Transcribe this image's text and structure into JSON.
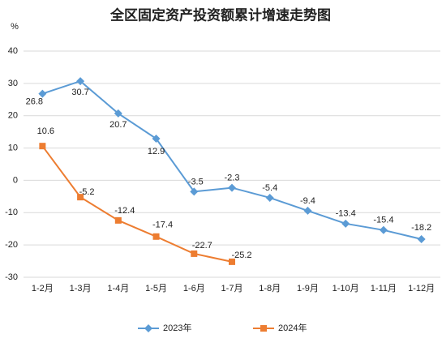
{
  "chart_data": {
    "type": "line",
    "title": "全区固定资产投资额累计增速走势图",
    "y_label": "%",
    "categories": [
      "1-2月",
      "1-3月",
      "1-4月",
      "1-5月",
      "1-6月",
      "1-7月",
      "1-8月",
      "1-9月",
      "1-10月",
      "1-11月",
      "1-12月"
    ],
    "series": [
      {
        "name": "2023年",
        "color": "#5b9bd5",
        "marker": "diamond",
        "values": [
          26.8,
          30.7,
          20.7,
          12.9,
          -3.5,
          -2.3,
          -5.4,
          -9.4,
          -13.4,
          -15.4,
          -18.2
        ]
      },
      {
        "name": "2024年",
        "color": "#ed7d31",
        "marker": "square",
        "values": [
          10.6,
          -5.2,
          -12.4,
          -17.4,
          -22.7,
          -25.2,
          null,
          null,
          null,
          null,
          null
        ]
      }
    ],
    "ylim": [
      -30,
      40
    ],
    "yticks": [
      -30,
      -20,
      -10,
      0,
      10,
      20,
      30,
      40
    ],
    "grid": true,
    "legend": "bottom"
  }
}
